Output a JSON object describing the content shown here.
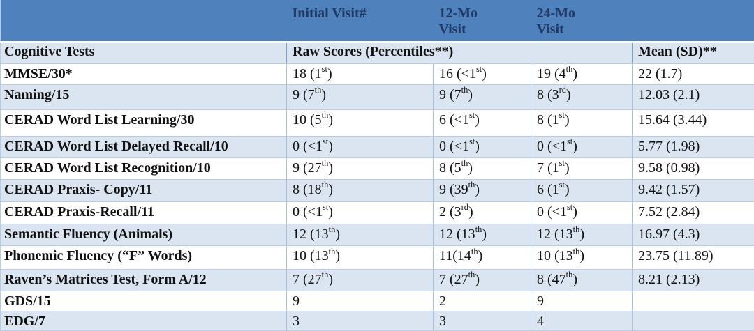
{
  "colors": {
    "header_bg": "#4f81bd",
    "header_text": "#1f3864",
    "band_bg": "#dbe5f1",
    "border": "#a9c0dd"
  },
  "table": {
    "top_header": {
      "initial": "Initial Visit#",
      "m12": "12-Mo Visit",
      "m24": "24-Mo Visit"
    },
    "sub_header": {
      "tests": "Cognitive Tests",
      "raw_scores": "Raw Scores (Percentiles**)",
      "mean": "Mean (SD)**"
    },
    "rows": [
      {
        "test": "MMSE/30*",
        "initial": "18 (1st)",
        "m12": "16 (<1st)",
        "m24": "19 (4th)",
        "mean": "22 (1.7)"
      },
      {
        "test": "Naming/15",
        "initial": "9 (7th)",
        "m12": "9 (7th)",
        "m24": "8 (3rd)",
        "mean": "12.03 (2.1)"
      },
      {
        "test": "CERAD Word List Learning/30",
        "initial": "10 (5th)",
        "m12": "6 (<1st)",
        "m24": "8 (1st)",
        "mean": "15.64 (3.44)"
      },
      {
        "test": "CERAD Word List Delayed Recall/10",
        "initial": "0 (<1st)",
        "m12": "0 (<1st)",
        "m24": "0 (<1st)",
        "mean": "5.77 (1.98)"
      },
      {
        "test": "CERAD Word List Recognition/10",
        "initial": "9 (27th)",
        "m12": "8 (5th)",
        "m24": "7 (1st)",
        "mean": "9.58 (0.98)"
      },
      {
        "test": "CERAD Praxis- Copy/11",
        "initial": "8 (18th)",
        "m12": "9 (39th)",
        "m24": "6 (1st)",
        "mean": "9.42 (1.57)"
      },
      {
        "test": "CERAD Praxis-Recall/11",
        "initial": "0 (<1st)",
        "m12": "2 (3rd)",
        "m24": "0 (<1st)",
        "mean": "7.52 (2.84)"
      },
      {
        "test": "Semantic Fluency (Animals)",
        "initial": "12 (13th)",
        "m12": "12 (13th)",
        "m24": "12 (13th)",
        "mean": "16.97 (4.3)"
      },
      {
        "test": "Phonemic Fluency (“F” Words)",
        "initial": "10 (13th)",
        "m12": "11(14th)",
        "m24": "10 (13th)",
        "mean": "23.75 (11.89)"
      },
      {
        "test": "Raven’s Matrices Test, Form A/12",
        "initial": "7 (27th)",
        "m12": "7 (27th)",
        "m24": "8 (47th)",
        "mean": "8.21 (2.13)"
      },
      {
        "test": "GDS/15",
        "initial": "9",
        "m12": "2",
        "m24": "9",
        "mean": ""
      },
      {
        "test": "EDG/7",
        "initial": "3",
        "m12": "3",
        "m24": "4",
        "mean": ""
      }
    ]
  }
}
